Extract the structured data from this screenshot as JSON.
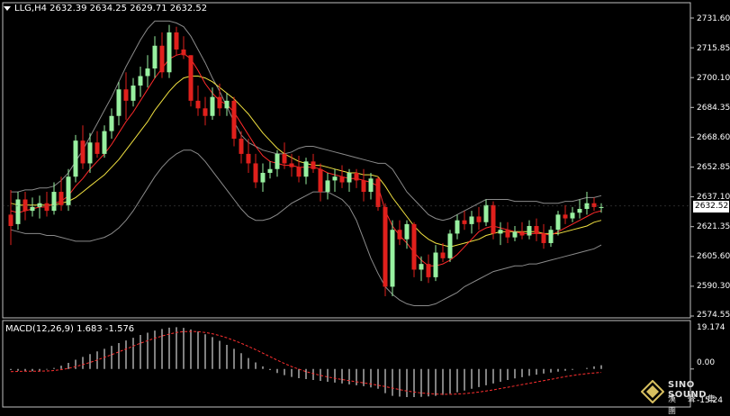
{
  "main_header": {
    "symbol": "LLG,H4",
    "ohlc": "2632.39 2634.25 2629.71 2632.52"
  },
  "macd_header": {
    "label": "MACD(12,26,9) 1.683 -1.576"
  },
  "price_axis": [
    "2731.60",
    "2715.85",
    "2700.10",
    "2684.35",
    "2668.60",
    "2652.85",
    "2637.10",
    "2621.35",
    "2605.60",
    "2590.30",
    "2574.55"
  ],
  "current_price": "2632.52",
  "macd_axis": {
    "top": "19.174",
    "zero": "0.00",
    "bottom": "-15.24"
  },
  "logo": {
    "title": "SINO SOUND",
    "subtitle": "漢 聲 集 團"
  },
  "colors": {
    "bull": "#98f0a0",
    "bear": "#e0201c",
    "ma_fast": "#ff2a2a",
    "ma_slow": "#f0e040",
    "band": "#8a8a8a",
    "macd_hist": "#ffffff",
    "macd_signal": "#ff3030"
  },
  "chart_data": {
    "type": "candlestick",
    "symbol": "LLG,H4",
    "ylim": [
      2574.55,
      2731.6
    ],
    "candles": [
      [
        2628,
        2641,
        2612,
        2622
      ],
      [
        2623,
        2640,
        2620,
        2636
      ],
      [
        2636,
        2640,
        2625,
        2630
      ],
      [
        2630,
        2637,
        2627,
        2632
      ],
      [
        2632,
        2638,
        2626,
        2634
      ],
      [
        2634,
        2640,
        2627,
        2630
      ],
      [
        2630,
        2645,
        2628,
        2640
      ],
      [
        2640,
        2648,
        2630,
        2633
      ],
      [
        2633,
        2652,
        2630,
        2648
      ],
      [
        2648,
        2670,
        2645,
        2667
      ],
      [
        2667,
        2675,
        2652,
        2655
      ],
      [
        2655,
        2671,
        2650,
        2666
      ],
      [
        2666,
        2672,
        2658,
        2660
      ],
      [
        2660,
        2675,
        2658,
        2672
      ],
      [
        2672,
        2684,
        2668,
        2680
      ],
      [
        2680,
        2698,
        2675,
        2694
      ],
      [
        2694,
        2703,
        2678,
        2688
      ],
      [
        2688,
        2700,
        2685,
        2696
      ],
      [
        2696,
        2706,
        2690,
        2701
      ],
      [
        2701,
        2712,
        2695,
        2705
      ],
      [
        2705,
        2722,
        2700,
        2717
      ],
      [
        2717,
        2724,
        2700,
        2703
      ],
      [
        2703,
        2728,
        2700,
        2724
      ],
      [
        2724,
        2727,
        2712,
        2715
      ],
      [
        2715,
        2722,
        2710,
        2712
      ],
      [
        2712,
        2712,
        2685,
        2688
      ],
      [
        2688,
        2696,
        2680,
        2684
      ],
      [
        2684,
        2690,
        2675,
        2680
      ],
      [
        2680,
        2695,
        2678,
        2690
      ],
      [
        2690,
        2697,
        2680,
        2684
      ],
      [
        2684,
        2692,
        2680,
        2688
      ],
      [
        2688,
        2690,
        2664,
        2668
      ],
      [
        2668,
        2672,
        2655,
        2660
      ],
      [
        2660,
        2668,
        2650,
        2655
      ],
      [
        2655,
        2660,
        2642,
        2645
      ],
      [
        2645,
        2655,
        2640,
        2650
      ],
      [
        2650,
        2656,
        2647,
        2652
      ],
      [
        2652,
        2662,
        2648,
        2660
      ],
      [
        2660,
        2666,
        2652,
        2655
      ],
      [
        2655,
        2660,
        2648,
        2653
      ],
      [
        2653,
        2659,
        2645,
        2648
      ],
      [
        2648,
        2658,
        2644,
        2656
      ],
      [
        2656,
        2660,
        2650,
        2652
      ],
      [
        2652,
        2655,
        2635,
        2640
      ],
      [
        2640,
        2650,
        2636,
        2646
      ],
      [
        2646,
        2652,
        2640,
        2648
      ],
      [
        2648,
        2654,
        2642,
        2645
      ],
      [
        2645,
        2652,
        2640,
        2650
      ],
      [
        2650,
        2652,
        2642,
        2646
      ],
      [
        2646,
        2652,
        2635,
        2640
      ],
      [
        2640,
        2650,
        2636,
        2647
      ],
      [
        2647,
        2648,
        2630,
        2632
      ],
      [
        2632,
        2634,
        2585,
        2590
      ],
      [
        2590,
        2625,
        2585,
        2620
      ],
      [
        2620,
        2625,
        2612,
        2615
      ],
      [
        2615,
        2625,
        2610,
        2623
      ],
      [
        2623,
        2624,
        2595,
        2599
      ],
      [
        2599,
        2606,
        2593,
        2602
      ],
      [
        2602,
        2607,
        2592,
        2595
      ],
      [
        2595,
        2612,
        2593,
        2608
      ],
      [
        2608,
        2613,
        2603,
        2605
      ],
      [
        2605,
        2620,
        2603,
        2618
      ],
      [
        2618,
        2628,
        2615,
        2625
      ],
      [
        2625,
        2630,
        2620,
        2623
      ],
      [
        2623,
        2630,
        2618,
        2627
      ],
      [
        2627,
        2632,
        2620,
        2624
      ],
      [
        2624,
        2636,
        2622,
        2633
      ],
      [
        2633,
        2635,
        2615,
        2618
      ],
      [
        2618,
        2624,
        2612,
        2620
      ],
      [
        2620,
        2624,
        2613,
        2616
      ],
      [
        2616,
        2622,
        2614,
        2619
      ],
      [
        2619,
        2624,
        2615,
        2617
      ],
      [
        2617,
        2625,
        2615,
        2622
      ],
      [
        2622,
        2626,
        2614,
        2618
      ],
      [
        2618,
        2623,
        2610,
        2613
      ],
      [
        2613,
        2622,
        2611,
        2620
      ],
      [
        2620,
        2630,
        2617,
        2628
      ],
      [
        2628,
        2633,
        2623,
        2626
      ],
      [
        2626,
        2632,
        2624,
        2629
      ],
      [
        2629,
        2636,
        2626,
        2631
      ],
      [
        2631,
        2640,
        2628,
        2634
      ],
      [
        2634,
        2637,
        2630,
        2632
      ],
      [
        2632,
        2634,
        2629,
        2632
      ]
    ],
    "ma_fast": [
      2630,
      2629,
      2630,
      2631,
      2632,
      2632,
      2634,
      2635,
      2638,
      2643,
      2647,
      2652,
      2656,
      2660,
      2665,
      2671,
      2677,
      2682,
      2688,
      2694,
      2700,
      2705,
      2710,
      2712,
      2713,
      2710,
      2704,
      2697,
      2692,
      2688,
      2686,
      2682,
      2676,
      2670,
      2664,
      2659,
      2656,
      2655,
      2654,
      2654,
      2653,
      2653,
      2653,
      2652,
      2650,
      2649,
      2648,
      2647,
      2647,
      2646,
      2645,
      2643,
      2630,
      2622,
      2617,
      2613,
      2608,
      2604,
      2601,
      2601,
      2602,
      2604,
      2607,
      2611,
      2615,
      2619,
      2621,
      2622,
      2621,
      2620,
      2619,
      2618,
      2618,
      2618,
      2618,
      2617,
      2619,
      2621,
      2623,
      2625,
      2627,
      2629,
      2630
    ],
    "ma_slow": [
      2634,
      2633,
      2633,
      2633,
      2633,
      2633,
      2633,
      2634,
      2635,
      2637,
      2640,
      2643,
      2646,
      2649,
      2653,
      2657,
      2662,
      2667,
      2672,
      2677,
      2683,
      2688,
      2693,
      2697,
      2700,
      2701,
      2701,
      2700,
      2698,
      2695,
      2692,
      2689,
      2685,
      2681,
      2676,
      2671,
      2667,
      2663,
      2660,
      2658,
      2656,
      2655,
      2654,
      2654,
      2653,
      2652,
      2651,
      2650,
      2650,
      2649,
      2649,
      2648,
      2643,
      2637,
      2632,
      2627,
      2622,
      2618,
      2615,
      2613,
      2612,
      2611,
      2612,
      2613,
      2614,
      2615,
      2617,
      2618,
      2619,
      2619,
      2619,
      2619,
      2619,
      2619,
      2618,
      2618,
      2618,
      2619,
      2620,
      2621,
      2622,
      2624,
      2625
    ],
    "band_upper": [
      2640,
      2640,
      2641,
      2641,
      2642,
      2642,
      2643,
      2646,
      2650,
      2656,
      2662,
      2669,
      2676,
      2683,
      2690,
      2698,
      2706,
      2713,
      2720,
      2726,
      2730,
      2730,
      2730,
      2729,
      2727,
      2722,
      2715,
      2708,
      2700,
      2693,
      2685,
      2677,
      2670,
      2666,
      2664,
      2662,
      2661,
      2660,
      2660,
      2661,
      2663,
      2664,
      2664,
      2663,
      2662,
      2661,
      2660,
      2659,
      2658,
      2657,
      2656,
      2655,
      2655,
      2652,
      2646,
      2640,
      2636,
      2632,
      2628,
      2626,
      2625,
      2626,
      2628,
      2630,
      2632,
      2634,
      2636,
      2636,
      2636,
      2636,
      2635,
      2635,
      2635,
      2635,
      2634,
      2634,
      2634,
      2635,
      2635,
      2636,
      2637,
      2637,
      2638
    ],
    "band_lower": [
      2620,
      2619,
      2618,
      2618,
      2618,
      2617,
      2617,
      2616,
      2615,
      2614,
      2614,
      2614,
      2615,
      2616,
      2618,
      2621,
      2625,
      2630,
      2636,
      2642,
      2648,
      2653,
      2657,
      2660,
      2662,
      2662,
      2660,
      2656,
      2651,
      2646,
      2641,
      2636,
      2631,
      2627,
      2625,
      2625,
      2626,
      2628,
      2631,
      2634,
      2636,
      2638,
      2640,
      2640,
      2640,
      2638,
      2636,
      2632,
      2625,
      2615,
      2605,
      2597,
      2590,
      2586,
      2583,
      2581,
      2580,
      2580,
      2580,
      2581,
      2583,
      2585,
      2587,
      2590,
      2592,
      2594,
      2596,
      2598,
      2599,
      2600,
      2601,
      2601,
      2602,
      2602,
      2603,
      2604,
      2605,
      2606,
      2607,
      2608,
      2609,
      2610,
      2612
    ],
    "macd_hist": [
      -0.5,
      -0.8,
      -1.0,
      -1.0,
      -0.8,
      -0.3,
      0.5,
      1.5,
      2.8,
      4.2,
      5.5,
      6.8,
      8.0,
      9.2,
      10.5,
      11.8,
      13.0,
      14.2,
      15.5,
      16.5,
      17.5,
      18.2,
      18.8,
      19.0,
      18.7,
      18.0,
      17.0,
      15.8,
      14.5,
      12.8,
      11.0,
      9.2,
      7.2,
      5.0,
      3.0,
      1.2,
      -0.5,
      -1.8,
      -2.8,
      -3.6,
      -4.2,
      -4.6,
      -5.0,
      -5.4,
      -5.8,
      -6.2,
      -6.6,
      -7.0,
      -7.4,
      -7.8,
      -8.4,
      -9.0,
      -11.0,
      -12.2,
      -12.6,
      -12.8,
      -12.8,
      -12.7,
      -12.5,
      -12.2,
      -11.8,
      -11.2,
      -10.6,
      -9.8,
      -9.0,
      -8.2,
      -7.4,
      -6.6,
      -5.8,
      -5.0,
      -4.3,
      -3.7,
      -3.1,
      -2.6,
      -2.1,
      -1.6,
      -1.2,
      -0.8,
      -0.4,
      0.0,
      0.5,
      1.2,
      1.7
    ],
    "macd_signal": [
      -1.2,
      -1.1,
      -1.0,
      -1.0,
      -1.0,
      -0.9,
      -0.7,
      -0.3,
      0.3,
      1.1,
      2.0,
      3.0,
      4.1,
      5.3,
      6.5,
      7.8,
      9.1,
      10.4,
      11.7,
      12.9,
      14.0,
      15.0,
      15.9,
      16.6,
      17.0,
      17.1,
      17.0,
      16.6,
      16.0,
      15.2,
      14.2,
      13.0,
      11.7,
      10.3,
      8.8,
      7.2,
      5.6,
      4.0,
      2.5,
      1.1,
      -0.1,
      -1.2,
      -2.1,
      -2.9,
      -3.6,
      -4.2,
      -4.8,
      -5.3,
      -5.8,
      -6.3,
      -6.8,
      -7.4,
      -8.0,
      -8.7,
      -9.4,
      -10.0,
      -10.5,
      -10.9,
      -11.2,
      -11.4,
      -11.5,
      -11.5,
      -11.4,
      -11.2,
      -10.9,
      -10.5,
      -10.0,
      -9.5,
      -8.9,
      -8.3,
      -7.7,
      -7.1,
      -6.5,
      -5.9,
      -5.3,
      -4.7,
      -4.1,
      -3.5,
      -3.0,
      -2.5,
      -2.1,
      -1.8,
      -1.576
    ]
  }
}
